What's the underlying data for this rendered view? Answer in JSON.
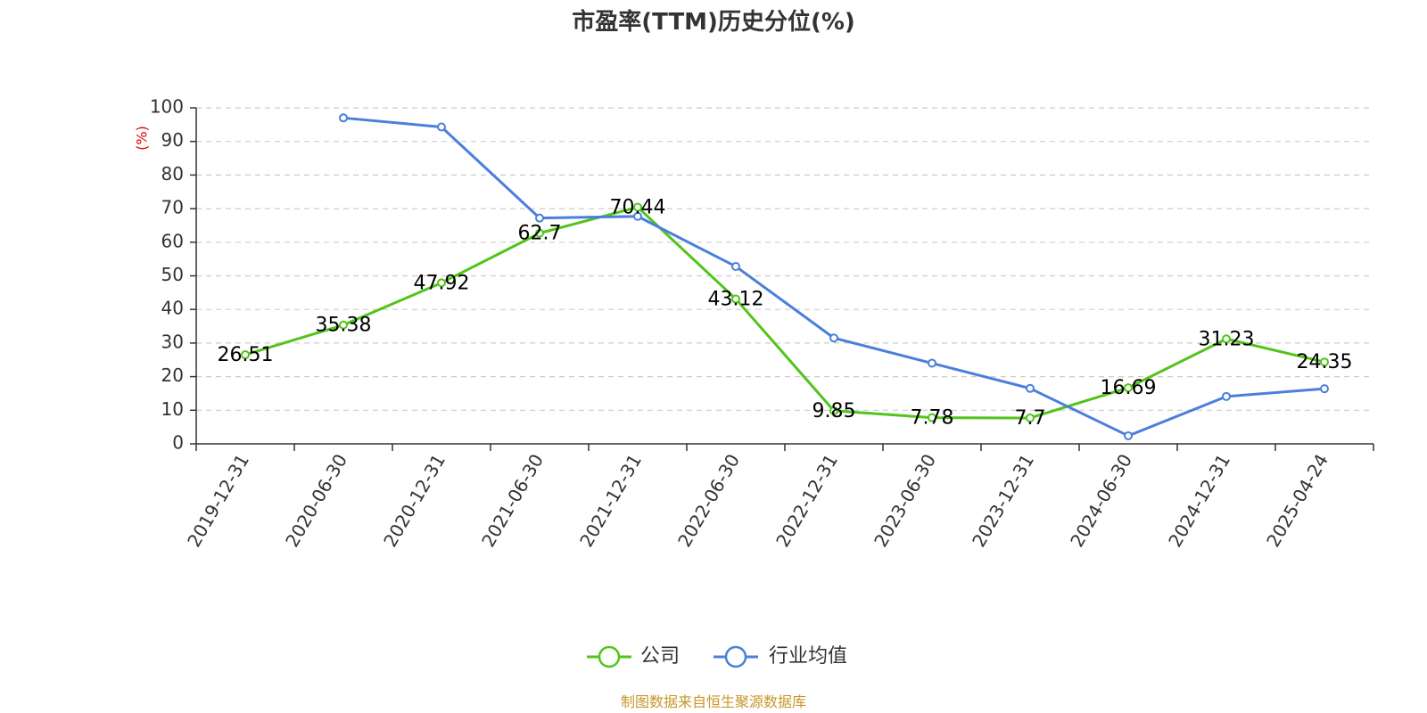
{
  "chart_data": {
    "type": "line",
    "title": "市盈率(TTM)历史分位(%)",
    "ylabel": "(%)",
    "ylim": [
      0,
      100
    ],
    "yticks": [
      0,
      10,
      20,
      30,
      40,
      50,
      60,
      70,
      80,
      90,
      100
    ],
    "grid": true,
    "legend_position": "bottom-center",
    "categories": [
      "2019-12-31",
      "2020-06-30",
      "2020-12-31",
      "2021-06-30",
      "2021-12-31",
      "2022-06-30",
      "2022-12-31",
      "2023-06-30",
      "2023-12-31",
      "2024-06-30",
      "2024-12-31",
      "2025-04-24"
    ],
    "series": [
      {
        "name": "公司",
        "color": "#52c41a",
        "values": [
          26.51,
          35.38,
          47.92,
          62.7,
          70.44,
          43.12,
          9.85,
          7.78,
          7.7,
          16.69,
          31.23,
          24.35
        ],
        "labels": [
          "26.51",
          "35.38",
          "47.92",
          "62.7",
          "70.44",
          "43.12",
          "9.85",
          "7.78",
          "7.7",
          "16.69",
          "31.23",
          "24.35"
        ]
      },
      {
        "name": "行业均值",
        "color": "#4a7fdc",
        "values": [
          null,
          97.0,
          94.3,
          67.2,
          67.7,
          52.8,
          31.5,
          24.0,
          16.5,
          2.4,
          14.1,
          16.4
        ]
      }
    ]
  },
  "footer": {
    "source": "制图数据来自恒生聚源数据库"
  }
}
